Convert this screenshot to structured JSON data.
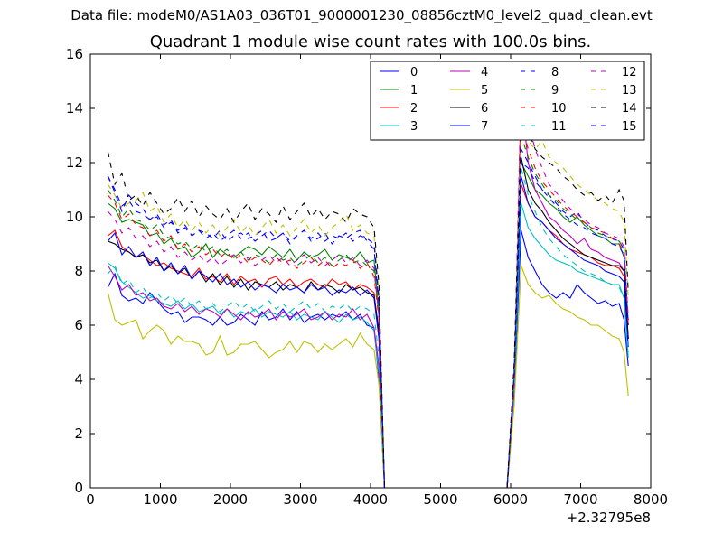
{
  "suptitle": "Data file: modeM0/AS1A03_036T01_9000001230_08856cztM0_level2_quad_clean.evt",
  "chart_data": {
    "type": "line",
    "title": "Quadrant 1 module wise count rates with 100.0s bins.",
    "xlabel": "",
    "ylabel": "",
    "xlim": [
      0,
      8000
    ],
    "ylim": [
      0,
      16
    ],
    "x_offset_label": "+2.32795e8",
    "xticks": [
      0,
      1000,
      2000,
      3000,
      4000,
      5000,
      6000,
      7000,
      8000
    ],
    "yticks": [
      0,
      2,
      4,
      6,
      8,
      10,
      12,
      14,
      16
    ],
    "grid": false,
    "legend": {
      "position": "top-right",
      "columns": 4
    },
    "x": [
      250,
      350,
      450,
      550,
      650,
      750,
      850,
      950,
      1050,
      1150,
      1250,
      1350,
      1450,
      1550,
      1650,
      1750,
      1850,
      1950,
      2050,
      2150,
      2250,
      2350,
      2450,
      2550,
      2650,
      2750,
      2850,
      2950,
      3050,
      3150,
      3250,
      3350,
      3450,
      3550,
      3650,
      3750,
      3850,
      3950,
      4050,
      4120,
      4200,
      4500,
      5000,
      5500,
      5950,
      6050,
      6150,
      6250,
      6350,
      6450,
      6550,
      6650,
      6750,
      6850,
      6950,
      7050,
      7150,
      7250,
      7350,
      7450,
      7550,
      7620,
      7680
    ],
    "series": [
      {
        "name": "0",
        "color": "#0000ff",
        "dash": "solid",
        "values": [
          7.4,
          7.9,
          7.1,
          6.9,
          7.0,
          6.8,
          7.2,
          6.9,
          6.6,
          6.4,
          6.5,
          6.1,
          6.3,
          6.3,
          6.2,
          6.0,
          6.3,
          6.0,
          6.1,
          6.4,
          6.2,
          6.0,
          6.5,
          6.2,
          6.3,
          6.6,
          6.2,
          6.5,
          6.1,
          6.3,
          6.4,
          6.2,
          6.4,
          6.3,
          6.5,
          6.2,
          6.4,
          6.0,
          5.9,
          4.0,
          0,
          0,
          0,
          0,
          0,
          3.5,
          9.5,
          8.5,
          8.0,
          7.5,
          7.2,
          7.0,
          7.2,
          7.0,
          7.5,
          7.2,
          7.0,
          6.8,
          6.9,
          6.7,
          6.8,
          6.2,
          4.5
        ]
      },
      {
        "name": "1",
        "color": "#008000",
        "dash": "solid",
        "values": [
          10.5,
          10.3,
          9.8,
          9.9,
          9.8,
          9.7,
          9.3,
          9.4,
          9.0,
          9.2,
          8.8,
          8.9,
          8.5,
          8.7,
          9.0,
          8.5,
          8.8,
          8.6,
          8.5,
          8.7,
          8.9,
          8.8,
          8.6,
          8.9,
          8.7,
          8.5,
          8.8,
          8.4,
          8.7,
          8.5,
          8.6,
          8.8,
          8.4,
          8.6,
          8.5,
          8.4,
          8.7,
          8.3,
          8.4,
          6.5,
          0,
          0,
          0,
          0,
          0,
          4.0,
          12.0,
          11.5,
          11.0,
          10.8,
          10.5,
          10.3,
          10.0,
          9.8,
          10.0,
          9.7,
          9.5,
          9.3,
          9.2,
          9.0,
          9.0,
          8.5,
          6.0
        ]
      },
      {
        "name": "2",
        "color": "#ff0000",
        "dash": "solid",
        "values": [
          9.3,
          9.5,
          8.9,
          8.7,
          8.5,
          8.6,
          8.4,
          8.2,
          8.3,
          8.1,
          8.0,
          7.9,
          7.8,
          8.1,
          7.7,
          7.8,
          7.6,
          7.9,
          7.5,
          7.8,
          7.6,
          7.7,
          7.4,
          7.7,
          7.8,
          7.5,
          7.7,
          7.4,
          7.6,
          7.7,
          7.5,
          7.4,
          7.7,
          7.5,
          7.6,
          7.3,
          7.5,
          7.4,
          7.2,
          5.5,
          0,
          0,
          0,
          0,
          0,
          3.8,
          11.2,
          10.5,
          10.0,
          9.8,
          9.5,
          9.3,
          9.0,
          8.8,
          8.7,
          8.6,
          8.5,
          8.3,
          8.2,
          8.2,
          8.1,
          7.8,
          5.5
        ]
      },
      {
        "name": "3",
        "color": "#00bfbf",
        "dash": "solid",
        "values": [
          8.3,
          8.1,
          7.6,
          7.4,
          7.2,
          7.0,
          7.1,
          6.9,
          6.8,
          6.7,
          6.9,
          6.6,
          6.8,
          6.5,
          6.6,
          6.7,
          6.4,
          6.6,
          6.3,
          6.5,
          6.4,
          6.6,
          6.3,
          6.5,
          6.4,
          6.3,
          6.5,
          6.2,
          6.4,
          6.3,
          6.2,
          6.5,
          6.3,
          6.1,
          6.4,
          6.2,
          6.3,
          6.1,
          5.8,
          4.2,
          0,
          0,
          0,
          0,
          0,
          3.6,
          10.5,
          9.6,
          9.2,
          8.9,
          8.6,
          8.4,
          8.3,
          8.2,
          8.0,
          7.9,
          7.8,
          7.7,
          7.6,
          7.5,
          7.5,
          7.0,
          4.8
        ]
      },
      {
        "name": "4",
        "color": "#bf00bf",
        "dash": "solid",
        "values": [
          8.2,
          7.8,
          7.3,
          7.5,
          7.1,
          7.2,
          6.9,
          7.0,
          6.7,
          6.6,
          6.8,
          6.5,
          6.7,
          6.4,
          6.6,
          6.5,
          6.3,
          6.6,
          6.4,
          6.2,
          6.5,
          6.3,
          6.4,
          6.6,
          6.2,
          6.5,
          6.3,
          6.4,
          6.6,
          6.2,
          6.3,
          6.5,
          6.2,
          6.4,
          6.3,
          6.6,
          6.2,
          6.4,
          5.9,
          4.5,
          0,
          0,
          0,
          0,
          0,
          3.7,
          14.5,
          12.0,
          11.0,
          10.5,
          10.0,
          9.8,
          9.5,
          9.3,
          9.0,
          9.2,
          8.8,
          8.7,
          8.5,
          8.4,
          8.3,
          8.0,
          5.5
        ]
      },
      {
        "name": "5",
        "color": "#bfbf00",
        "dash": "solid",
        "values": [
          7.2,
          6.2,
          6.0,
          6.1,
          6.2,
          5.5,
          5.8,
          6.0,
          5.8,
          5.3,
          5.6,
          5.4,
          5.4,
          5.3,
          4.9,
          5.0,
          5.6,
          4.9,
          5.0,
          5.3,
          5.3,
          5.4,
          5.1,
          4.8,
          5.0,
          5.1,
          5.4,
          5.0,
          5.4,
          5.3,
          5.0,
          5.3,
          5.1,
          5.3,
          5.5,
          5.2,
          5.7,
          5.3,
          5.1,
          3.8,
          0,
          0,
          0,
          0,
          0,
          3.0,
          8.2,
          7.5,
          7.2,
          7.0,
          7.1,
          6.8,
          6.6,
          6.5,
          6.3,
          6.2,
          6.0,
          6.0,
          5.8,
          5.6,
          5.5,
          5.0,
          3.4
        ]
      },
      {
        "name": "6",
        "color": "#000000",
        "dash": "solid",
        "values": [
          9.1,
          9.0,
          8.8,
          8.7,
          8.5,
          8.6,
          8.3,
          8.4,
          8.0,
          8.2,
          7.9,
          8.1,
          7.7,
          8.0,
          7.6,
          7.9,
          7.5,
          7.8,
          7.4,
          7.7,
          7.3,
          7.6,
          7.5,
          7.4,
          7.6,
          7.3,
          7.5,
          7.4,
          7.2,
          7.6,
          7.3,
          7.5,
          7.4,
          7.2,
          7.5,
          7.3,
          7.4,
          7.2,
          7.1,
          5.8,
          0,
          0,
          0,
          0,
          0,
          4.0,
          12.2,
          11.0,
          10.5,
          10.2,
          9.8,
          9.5,
          9.2,
          9.0,
          8.8,
          8.6,
          8.5,
          8.4,
          8.3,
          8.2,
          8.2,
          8.0,
          5.5
        ]
      },
      {
        "name": "7",
        "color": "#0000ff",
        "dash": "solid",
        "values": [
          9.1,
          9.4,
          8.6,
          8.9,
          8.5,
          8.7,
          8.2,
          8.5,
          8.0,
          8.3,
          7.9,
          8.2,
          7.7,
          8.0,
          7.8,
          7.6,
          7.9,
          7.5,
          7.7,
          7.4,
          7.6,
          7.3,
          7.5,
          7.4,
          7.2,
          7.5,
          7.3,
          7.4,
          7.2,
          7.5,
          7.3,
          7.4,
          7.1,
          7.3,
          7.2,
          7.4,
          7.1,
          7.3,
          7.0,
          5.5,
          0,
          0,
          0,
          0,
          0,
          3.9,
          11.5,
          10.5,
          10.0,
          9.8,
          9.5,
          9.2,
          9.0,
          8.8,
          8.6,
          8.4,
          8.3,
          8.2,
          8.0,
          7.9,
          7.8,
          7.6,
          5.2
        ]
      },
      {
        "name": "8",
        "color": "#0000ff",
        "dash": "dashed",
        "values": [
          11.5,
          11.0,
          10.4,
          10.6,
          10.2,
          10.1,
          9.9,
          10.0,
          9.6,
          9.8,
          9.5,
          9.7,
          9.3,
          9.5,
          9.4,
          9.2,
          9.5,
          9.1,
          9.3,
          9.4,
          9.2,
          9.3,
          9.5,
          9.1,
          9.2,
          9.4,
          9.0,
          9.3,
          9.5,
          9.1,
          9.2,
          9.4,
          9.0,
          9.3,
          9.2,
          9.4,
          9.5,
          9.1,
          8.8,
          6.8,
          0,
          0,
          0,
          0,
          0,
          4.2,
          12.5,
          12.0,
          11.5,
          11.0,
          10.8,
          10.5,
          10.2,
          10.0,
          10.2,
          9.8,
          9.6,
          9.5,
          9.3,
          9.2,
          9.1,
          8.8,
          6.2
        ]
      },
      {
        "name": "9",
        "color": "#008000",
        "dash": "dashed",
        "values": [
          11.0,
          10.6,
          10.0,
          10.3,
          9.9,
          9.8,
          9.5,
          9.7,
          9.3,
          9.2,
          9.0,
          9.1,
          8.8,
          9.0,
          8.7,
          8.9,
          8.6,
          8.8,
          8.5,
          8.7,
          8.4,
          8.6,
          8.5,
          8.3,
          8.6,
          8.4,
          8.5,
          8.2,
          8.4,
          8.6,
          8.3,
          8.5,
          8.2,
          8.4,
          8.6,
          8.3,
          8.4,
          8.2,
          8.0,
          6.4,
          0,
          0,
          0,
          0,
          0,
          4.1,
          13.0,
          12.2,
          11.6,
          11.2,
          10.8,
          10.6,
          10.3,
          10.1,
          9.9,
          9.8,
          9.6,
          9.4,
          9.3,
          9.2,
          9.1,
          8.8,
          6.0
        ]
      },
      {
        "name": "10",
        "color": "#ff0000",
        "dash": "dashed",
        "values": [
          10.8,
          10.5,
          9.9,
          10.1,
          9.7,
          9.6,
          9.3,
          9.5,
          9.1,
          9.3,
          8.8,
          9.0,
          8.7,
          8.9,
          8.6,
          8.8,
          8.5,
          8.7,
          8.4,
          8.6,
          8.3,
          8.5,
          8.4,
          8.2,
          8.5,
          8.3,
          8.4,
          8.1,
          8.3,
          8.5,
          8.2,
          8.4,
          8.1,
          8.3,
          8.2,
          8.4,
          8.1,
          8.3,
          7.8,
          6.2,
          0,
          0,
          0,
          0,
          0,
          4.0,
          13.5,
          12.5,
          11.8,
          11.3,
          11.0,
          10.7,
          10.4,
          10.2,
          10.0,
          9.8,
          9.6,
          9.5,
          9.4,
          9.2,
          9.0,
          8.7,
          6.0
        ]
      },
      {
        "name": "11",
        "color": "#00bfbf",
        "dash": "dashed",
        "values": [
          7.9,
          8.2,
          7.5,
          7.7,
          7.2,
          7.4,
          7.0,
          7.2,
          6.9,
          7.1,
          6.8,
          7.0,
          6.7,
          6.9,
          6.6,
          6.8,
          6.5,
          6.7,
          6.9,
          6.6,
          6.8,
          6.5,
          6.7,
          6.9,
          6.6,
          6.8,
          6.5,
          6.7,
          6.9,
          6.6,
          6.8,
          6.5,
          6.7,
          6.6,
          6.8,
          6.5,
          6.7,
          6.6,
          6.4,
          4.8,
          0,
          0,
          0,
          0,
          0,
          3.9,
          11.8,
          10.8,
          10.2,
          9.6,
          9.2,
          8.9,
          8.6,
          8.4,
          8.2,
          8.0,
          7.9,
          7.8,
          7.6,
          7.5,
          7.4,
          7.0,
          5.0
        ]
      },
      {
        "name": "12",
        "color": "#bf00bf",
        "dash": "dashed",
        "values": [
          10.2,
          9.9,
          9.4,
          9.6,
          9.2,
          9.3,
          8.9,
          9.1,
          8.7,
          8.9,
          8.5,
          8.7,
          8.4,
          8.6,
          8.3,
          8.5,
          8.2,
          8.4,
          8.6,
          8.3,
          8.5,
          8.2,
          8.4,
          8.6,
          8.3,
          8.5,
          8.2,
          8.4,
          8.6,
          8.3,
          8.5,
          8.2,
          8.4,
          8.6,
          8.3,
          8.5,
          8.2,
          8.4,
          8.1,
          6.3,
          0,
          0,
          0,
          0,
          0,
          4.1,
          14.8,
          13.5,
          12.5,
          11.8,
          11.2,
          10.9,
          10.6,
          10.3,
          10.1,
          9.9,
          9.7,
          9.6,
          9.4,
          9.3,
          9.2,
          8.9,
          6.2
        ]
      },
      {
        "name": "13",
        "color": "#bfbf00",
        "dash": "dashed",
        "values": [
          11.2,
          10.8,
          10.3,
          10.5,
          10.6,
          10.9,
          10.2,
          10.4,
          9.8,
          10.1,
          9.6,
          9.9,
          9.5,
          9.8,
          9.4,
          9.7,
          9.3,
          9.6,
          9.9,
          9.4,
          9.7,
          9.3,
          9.6,
          9.9,
          9.4,
          9.7,
          9.3,
          9.6,
          9.9,
          9.4,
          9.7,
          9.3,
          9.6,
          9.8,
          10.1,
          9.5,
          9.7,
          9.4,
          9.3,
          7.2,
          0,
          0,
          0,
          0,
          0,
          4.4,
          13.2,
          12.8,
          12.5,
          12.8,
          12.2,
          12.0,
          11.8,
          11.5,
          11.2,
          11.0,
          10.8,
          10.6,
          10.5,
          10.3,
          10.2,
          9.8,
          7.0
        ]
      },
      {
        "name": "14",
        "color": "#000000",
        "dash": "dashed",
        "values": [
          12.4,
          11.2,
          11.6,
          10.6,
          10.8,
          10.4,
          10.9,
          10.5,
          10.1,
          10.3,
          10.7,
          10.2,
          10.6,
          10.0,
          10.4,
          10.1,
          9.9,
          10.3,
          9.8,
          10.2,
          10.5,
          9.9,
          10.3,
          10.1,
          9.8,
          10.4,
          9.9,
          10.2,
          10.5,
          10.0,
          10.3,
          9.9,
          10.2,
          10.1,
          9.8,
          10.3,
          10.1,
          10.0,
          9.6,
          7.5,
          0,
          0,
          0,
          0,
          0,
          4.6,
          13.0,
          13.2,
          12.5,
          12.2,
          12.0,
          11.8,
          11.5,
          11.3,
          11.0,
          10.8,
          10.9,
          10.6,
          10.8,
          10.5,
          11.0,
          10.6,
          7.2
        ]
      },
      {
        "name": "15",
        "color": "#0000ff",
        "dash": "dashed",
        "values": [
          11.5,
          10.9,
          10.2,
          10.8,
          10.5,
          10.3,
          9.9,
          10.1,
          9.7,
          9.9,
          9.4,
          9.6,
          9.3,
          9.5,
          9.2,
          9.4,
          9.1,
          9.3,
          9.5,
          9.2,
          9.4,
          9.1,
          9.3,
          9.5,
          9.2,
          9.4,
          9.1,
          9.3,
          9.5,
          9.2,
          9.4,
          9.1,
          9.3,
          9.2,
          9.4,
          9.1,
          9.3,
          9.2,
          9.0,
          6.9,
          0,
          0,
          0,
          0,
          0,
          4.2,
          12.0,
          11.8,
          11.3,
          11.0,
          10.7,
          10.4,
          10.1,
          9.9,
          9.7,
          9.6,
          9.4,
          9.3,
          9.2,
          9.0,
          8.9,
          8.6,
          6.0
        ]
      }
    ]
  }
}
